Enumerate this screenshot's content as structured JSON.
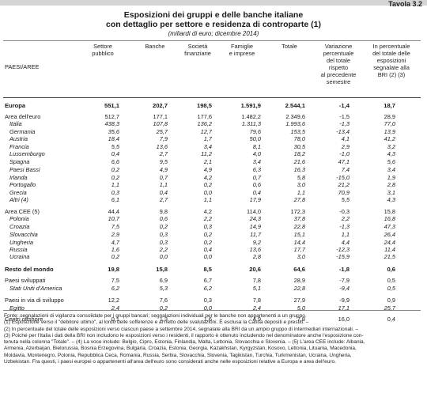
{
  "header": {
    "tavola": "Tavola 3.2",
    "title_line1": "Esposizioni dei gruppi e delle banche italiane",
    "title_line2": "con dettaglio per settore e residenza di controparte (1)",
    "subtitle": "(miliardi di euro; dicembre 2014)"
  },
  "columns": {
    "label": "PAESI/AREE",
    "c1": [
      "Settore",
      "pubblico"
    ],
    "c2": [
      "Banche"
    ],
    "c3": [
      "Società",
      "finanziarie"
    ],
    "c4": [
      "Famiglie",
      "e imprese"
    ],
    "c5": [
      "Totale"
    ],
    "c6": [
      "Variazione",
      "percentuale",
      "del totale",
      "rispetto",
      "al precedente",
      "semestre"
    ],
    "c7": [
      "In percentuale",
      "del totale delle",
      "esposizioni",
      "segnalate alla",
      "BRI (2) (3)"
    ]
  },
  "rows": [
    {
      "label": "Europa",
      "style": "main",
      "values": [
        "551,1",
        "202,7",
        "198,5",
        "1.591,9",
        "2.544,1",
        "-1,4",
        "18,7"
      ]
    },
    {
      "label": "Area dell'euro",
      "style": "normal",
      "values": [
        "512,7",
        "177,1",
        "177,6",
        "1.482,2",
        "2.349,6",
        "-1,5",
        "28,9"
      ]
    },
    {
      "label": "Italia",
      "style": "italic",
      "values": [
        "438,3",
        "107,8",
        "136,2",
        "1.311,3",
        "1.993,6",
        "-1,3",
        "77,0"
      ]
    },
    {
      "label": "Germania",
      "style": "italic",
      "values": [
        "35,6",
        "25,7",
        "12,7",
        "79,6",
        "153,5",
        "-13,4",
        "13,9"
      ]
    },
    {
      "label": "Austria",
      "style": "italic",
      "values": [
        "18,4",
        "7,9",
        "1,7",
        "50,0",
        "78,0",
        "4,1",
        "41,2"
      ]
    },
    {
      "label": "Francia",
      "style": "italic",
      "values": [
        "5,5",
        "13,6",
        "3,4",
        "8,1",
        "30,5",
        "2,9",
        "3,2"
      ]
    },
    {
      "label": "Lussemburgo",
      "style": "italic",
      "values": [
        "0,4",
        "2,7",
        "11,2",
        "4,0",
        "18,2",
        "-1,0",
        "4,3"
      ]
    },
    {
      "label": "Spagna",
      "style": "italic",
      "values": [
        "6,6",
        "9,5",
        "2,1",
        "3,4",
        "21,6",
        "47,1",
        "5,6"
      ]
    },
    {
      "label": "Paesi Bassi",
      "style": "italic",
      "values": [
        "0,2",
        "4,9",
        "4,9",
        "6,3",
        "16,3",
        "7,4",
        "3,4"
      ]
    },
    {
      "label": "Irlanda",
      "style": "italic",
      "values": [
        "0,2",
        "0,7",
        "4,2",
        "0,7",
        "5,8",
        "-15,0",
        "1,9"
      ]
    },
    {
      "label": "Portogallo",
      "style": "italic",
      "values": [
        "1,1",
        "1,1",
        "0,2",
        "0,6",
        "3,0",
        "21,2",
        "2,8"
      ]
    },
    {
      "label": "Grecia",
      "style": "italic",
      "values": [
        "0,3",
        "0,4",
        "0,0",
        "0,4",
        "1,1",
        "70,9",
        "3,1"
      ]
    },
    {
      "label": "Altri (4)",
      "style": "italic",
      "values": [
        "6,1",
        "2,7",
        "1,1",
        "17,9",
        "27,8",
        "5,5",
        "4,3"
      ]
    },
    {
      "label": "Area CEE (5)",
      "style": "normal",
      "values": [
        "44,4",
        "9,8",
        "4,2",
        "114,0",
        "172,3",
        "-0,3",
        "15,8"
      ]
    },
    {
      "label": "Polonia",
      "style": "italic",
      "values": [
        "10,7",
        "0,6",
        "2,2",
        "24,3",
        "37,8",
        "2,2",
        "16,8"
      ]
    },
    {
      "label": "Croazia",
      "style": "italic",
      "values": [
        "7,5",
        "0,2",
        "0,3",
        "14,9",
        "22,8",
        "-1,3",
        "47,3"
      ]
    },
    {
      "label": "Slovacchia",
      "style": "italic",
      "values": [
        "2,9",
        "0,3",
        "0,2",
        "11,7",
        "15,1",
        "1,1",
        "26,4"
      ]
    },
    {
      "label": "Ungheria",
      "style": "italic",
      "values": [
        "4,7",
        "0,3",
        "0,2",
        "9,2",
        "14,4",
        "4,4",
        "24,4"
      ]
    },
    {
      "label": "Russia",
      "style": "italic",
      "values": [
        "1,6",
        "2,2",
        "0,4",
        "13,6",
        "17,7",
        "-12,3",
        "11,4"
      ]
    },
    {
      "label": "Ucraina",
      "style": "italic",
      "values": [
        "0,2",
        "0,0",
        "0,0",
        "2,8",
        "3,0",
        "-15,9",
        "21,5"
      ]
    },
    {
      "label": "Resto del mondo",
      "style": "main",
      "values": [
        "19,8",
        "15,8",
        "8,5",
        "20,6",
        "64,6",
        "-1,8",
        "0,6"
      ]
    },
    {
      "label": "Paesi sviluppati",
      "style": "normal",
      "values": [
        "7,5",
        "6,9",
        "6,7",
        "7,8",
        "28,9",
        "-7,9",
        "0,5"
      ]
    },
    {
      "label": "Stati Uniti d'America",
      "style": "italic",
      "values": [
        "6,2",
        "5,3",
        "6,2",
        "5,1",
        "22,8",
        "-9,4",
        "0,5"
      ]
    },
    {
      "label": "Paesi in via di sviluppo",
      "style": "normal",
      "values": [
        "12,2",
        "7,6",
        "0,3",
        "7,8",
        "27,9",
        "-9,9",
        "0,9"
      ]
    },
    {
      "label": "Egitto",
      "style": "italic",
      "values": [
        "2,4",
        "0,2",
        "0,0",
        "2,4",
        "5,0",
        "17,1",
        "25,7"
      ]
    },
    {
      "label": "Centri offshore",
      "style": "normal",
      "values": [
        "0,1",
        "1,3",
        "1,6",
        "4,9",
        "7,8",
        "16,0",
        "0,4"
      ]
    }
  ],
  "notes": [
    "Fonte: segnalazioni di vigilanza consolidate per i gruppi bancari; segnalazioni individuali per le banche non appartenenti a un gruppo.",
    "(1) Esposizione verso il \"debitore ultimo\", al lordo delle sofferenze e al netto delle svalutazioni. È esclusa la Cassa depositi e prestiti. –",
    "(2) In percentuale del totale delle esposizioni verso ciascun paese a settembre 2014, segnalate alla BRI da un ampio gruppo di intermediari internazionali. –",
    "(3) Poiché per l'Italia i dati della BRI non includono le esposizioni verso i residenti, il rapporto è ottenuto includendo nel denominatore anche l'esposizione con-",
    "tenuta nella colonna \"Totale\". – (4) La voce include: Belgio, Cipro, Estonia, Finlandia, Malta, Lettonia, Slovacchia e Slovenia. – (5) L'area CEE include: Albania,",
    "Armenia, Azerbaijan, Bielorussia, Bosnia Erzegovina, Bulgaria, Croazia, Estonia, Georgia, Kazakhstan, Kyrgyzstan, Kosovo, Lettonia, Lituania, Macedonia,",
    "Moldavia, Montenegro, Polonia, Repubblica Ceca, Romania, Russia, Serbia, Slovacchia, Slovenia, Tagikistan, Turchia, Turkmenistan, Ucraina, Ungheria,",
    "Uzbekistan. Fra questi, i paesi europei o appartenenti all'area dell'euro sono considerati anche nelle esposizioni relative a Europa e area dell'euro."
  ]
}
